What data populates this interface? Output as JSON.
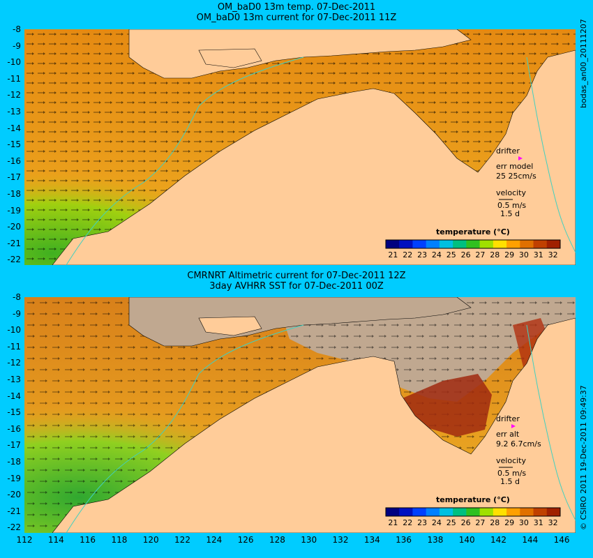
{
  "top_panel": {
    "title_line1": "OM_baD0 13m temp. 07-Dec-2011",
    "title_line2": "OM_baD0 13m current for 07-Dec-2011 11Z",
    "side_label": "bodas_an00_20111207",
    "drifter": "drifter",
    "err_label": "err model",
    "err_value": "25 25cm/s",
    "velocity": "velocity",
    "velocity_scale": "0.5 m/s",
    "velocity_days": "1.5 d",
    "colorbar_title": "temperature (°C)"
  },
  "bottom_panel": {
    "title_line1": "CMRNRT Altimetric current for 07-Dec-2011 12Z",
    "title_line2": "3day AVHRR SST for 07-Dec-2011 00Z",
    "side_label": "© CSIRO 2011   19-Dec-2011 09:49:37",
    "drifter": "drifter",
    "err_label": "err alt",
    "err_value": "9.2 6.7cm/s",
    "velocity": "velocity",
    "velocity_scale": "0.5 m/s",
    "velocity_days": "1.5 d",
    "colorbar_title": "temperature (°C)"
  },
  "colorbar": {
    "ticks": [
      "21",
      "22",
      "23",
      "24",
      "25",
      "26",
      "27",
      "28",
      "29",
      "30",
      "31",
      "32"
    ],
    "colors": [
      "#000080",
      "#0010c0",
      "#0040ff",
      "#0080ff",
      "#00c0e0",
      "#00c080",
      "#30c020",
      "#a0e000",
      "#ffe000",
      "#ffa000",
      "#e07000",
      "#c04000",
      "#a02000"
    ]
  },
  "axes": {
    "lat_ticks": [
      "-8",
      "-9",
      "-10",
      "-11",
      "-12",
      "-13",
      "-14",
      "-15",
      "-16",
      "-17",
      "-18",
      "-19",
      "-20",
      "-21",
      "-22"
    ],
    "lon_ticks": [
      "112",
      "114",
      "116",
      "118",
      "120",
      "122",
      "124",
      "126",
      "128",
      "130",
      "132",
      "134",
      "136",
      "138",
      "140",
      "142",
      "144",
      "146"
    ]
  },
  "colors": {
    "land": "#ffcc99",
    "ocean_warm": "#e88a10",
    "ocean_cool": "#60c020",
    "missing": "#c0a890",
    "background": "#00ccff"
  }
}
